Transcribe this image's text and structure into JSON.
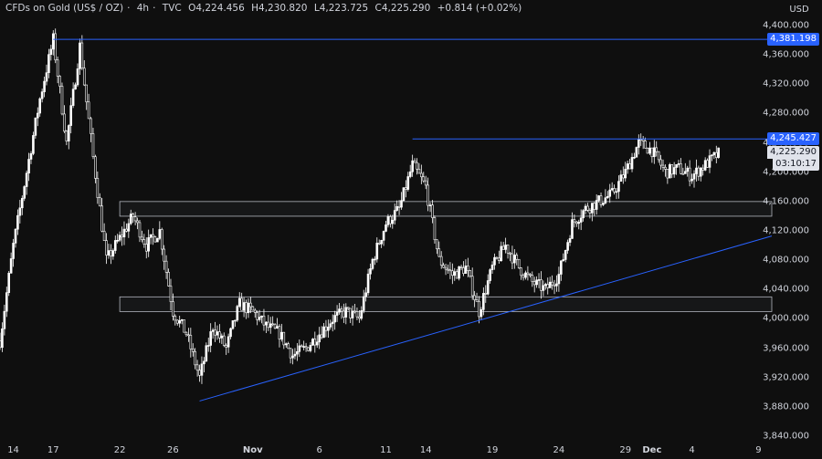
{
  "legend": {
    "symbol": "CFDs on Gold (US$ / OZ)",
    "interval": "4h",
    "source": "TVC",
    "open_label": "O",
    "open": "4,224.456",
    "high_label": "H",
    "high": "4,230.820",
    "low_label": "L",
    "low": "4,223.725",
    "close_label": "C",
    "close": "4,225.290",
    "change": "+0.814 (+0.02%)"
  },
  "currency": "USD",
  "price_labels": {
    "resistance_high": "4,381.198",
    "resistance_mid": "4,245.427",
    "current_price": "4,225.290",
    "countdown": "03:10:17"
  },
  "colors": {
    "background": "#0f0f0f",
    "candle": "#ffffff",
    "levels": "#2962ff",
    "zones": "#b2b5be"
  },
  "chart_data": {
    "type": "candlestick",
    "title": "",
    "y_axis": {
      "min": 3840,
      "max": 4400,
      "ticks": [
        "4,400.000",
        "4,360.000",
        "4,320.000",
        "4,280.000",
        "4,240.000",
        "4,200.000",
        "4,160.000",
        "4,120.000",
        "4,080.000",
        "4,040.000",
        "4,000.000",
        "3,960.000",
        "3,920.000",
        "3,880.000",
        "3,840.000"
      ],
      "tick_values": [
        4400,
        4360,
        4320,
        4280,
        4240,
        4200,
        4160,
        4120,
        4080,
        4040,
        4000,
        3960,
        3920,
        3880,
        3840
      ]
    },
    "x_axis": {
      "start": "2025-10-13",
      "end": "2025-12-10",
      "ticks": [
        {
          "label": "14",
          "date": "2025-10-14",
          "bold": false
        },
        {
          "label": "17",
          "date": "2025-10-17",
          "bold": false
        },
        {
          "label": "22",
          "date": "2025-10-22",
          "bold": false
        },
        {
          "label": "26",
          "date": "2025-10-26",
          "bold": false
        },
        {
          "label": "Nov",
          "date": "2025-11-01",
          "bold": true
        },
        {
          "label": "6",
          "date": "2025-11-06",
          "bold": false
        },
        {
          "label": "11",
          "date": "2025-11-11",
          "bold": false
        },
        {
          "label": "14",
          "date": "2025-11-14",
          "bold": false
        },
        {
          "label": "19",
          "date": "2025-11-19",
          "bold": false
        },
        {
          "label": "24",
          "date": "2025-11-24",
          "bold": false
        },
        {
          "label": "29",
          "date": "2025-11-29",
          "bold": false
        },
        {
          "label": "Dec",
          "date": "2025-12-01",
          "bold": true
        },
        {
          "label": "4",
          "date": "2025-12-04",
          "bold": false
        },
        {
          "label": "9",
          "date": "2025-12-09",
          "bold": false
        }
      ]
    },
    "price_path": [
      [
        "2025-10-13",
        3970
      ],
      [
        "2025-10-14",
        4100
      ],
      [
        "2025-10-15",
        4200
      ],
      [
        "2025-10-16",
        4300
      ],
      [
        "2025-10-17",
        4381
      ],
      [
        "2025-10-18",
        4240
      ],
      [
        "2025-10-19",
        4372
      ],
      [
        "2025-10-20",
        4220
      ],
      [
        "2025-10-21",
        4080
      ],
      [
        "2025-10-22",
        4110
      ],
      [
        "2025-10-23",
        4140
      ],
      [
        "2025-10-24",
        4100
      ],
      [
        "2025-10-25",
        4120
      ],
      [
        "2025-10-26",
        4010
      ],
      [
        "2025-10-27",
        3980
      ],
      [
        "2025-10-28",
        3920
      ],
      [
        "2025-10-29",
        3990
      ],
      [
        "2025-10-30",
        3960
      ],
      [
        "2025-10-31",
        4020
      ],
      [
        "2025-11-01",
        4010
      ],
      [
        "2025-11-02",
        3990
      ],
      [
        "2025-11-03",
        3980
      ],
      [
        "2025-11-04",
        3950
      ],
      [
        "2025-11-05",
        3960
      ],
      [
        "2025-11-06",
        3980
      ],
      [
        "2025-11-07",
        4000
      ],
      [
        "2025-11-08",
        4010
      ],
      [
        "2025-11-09",
        4000
      ],
      [
        "2025-11-10",
        4080
      ],
      [
        "2025-11-11",
        4130
      ],
      [
        "2025-11-12",
        4150
      ],
      [
        "2025-11-13",
        4210
      ],
      [
        "2025-11-14",
        4180
      ],
      [
        "2025-11-15",
        4080
      ],
      [
        "2025-11-16",
        4060
      ],
      [
        "2025-11-17",
        4070
      ],
      [
        "2025-11-18",
        4010
      ],
      [
        "2025-11-19",
        4070
      ],
      [
        "2025-11-20",
        4100
      ],
      [
        "2025-11-21",
        4070
      ],
      [
        "2025-11-22",
        4050
      ],
      [
        "2025-11-23",
        4040
      ],
      [
        "2025-11-24",
        4060
      ],
      [
        "2025-11-25",
        4130
      ],
      [
        "2025-11-26",
        4150
      ],
      [
        "2025-11-27",
        4160
      ],
      [
        "2025-11-28",
        4170
      ],
      [
        "2025-11-29",
        4200
      ],
      [
        "2025-11-30",
        4240
      ],
      [
        "2025-12-01",
        4230
      ],
      [
        "2025-12-02",
        4200
      ],
      [
        "2025-12-03",
        4205
      ],
      [
        "2025-12-04",
        4195
      ],
      [
        "2025-12-05",
        4210
      ],
      [
        "2025-12-06",
        4225
      ]
    ],
    "horizontal_levels": [
      {
        "price": 4381.198,
        "from": "2025-10-17"
      },
      {
        "price": 4245.427,
        "from": "2025-11-13"
      }
    ],
    "zones": [
      {
        "from": "2025-10-22",
        "top": 4160,
        "bottom": 4140
      },
      {
        "from": "2025-10-22",
        "top": 4030,
        "bottom": 4010
      }
    ],
    "trendline": {
      "from": [
        "2025-10-28",
        3888
      ],
      "to": [
        "2025-12-10",
        4113
      ]
    },
    "grid": false,
    "legend_position": "top-left"
  }
}
